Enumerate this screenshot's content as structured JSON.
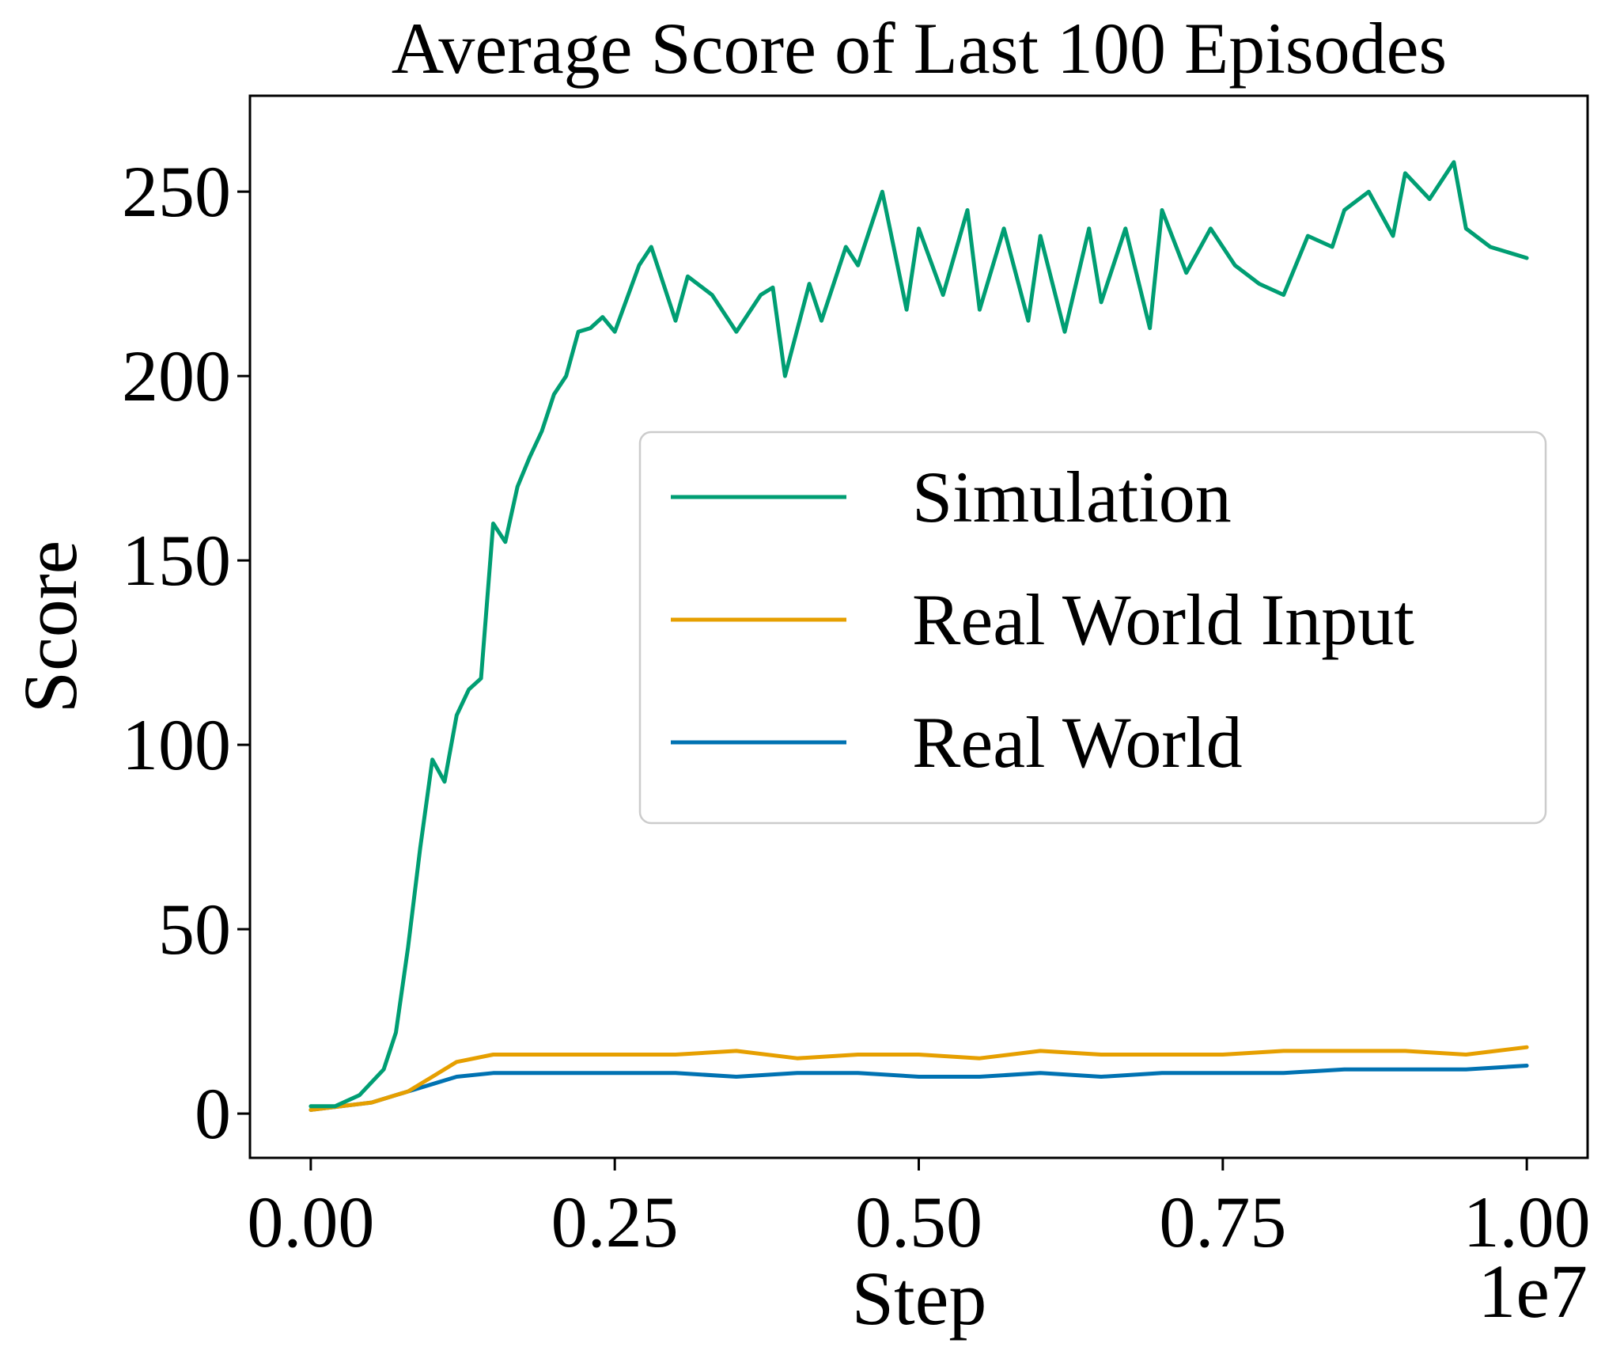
{
  "chart_data": {
    "type": "line",
    "title": "Average Score of Last 100 Episodes",
    "xlabel": "Step",
    "ylabel": "Score",
    "x_offset_label": "1e7",
    "xlim": [
      -0.05,
      1.05
    ],
    "ylim": [
      -12,
      276
    ],
    "xticks": [
      0.0,
      0.25,
      0.5,
      0.75,
      1.0
    ],
    "xtick_labels": [
      "0.00",
      "0.25",
      "0.50",
      "0.75",
      "1.00"
    ],
    "yticks": [
      0,
      50,
      100,
      150,
      200,
      250
    ],
    "ytick_labels": [
      "0",
      "50",
      "100",
      "150",
      "200",
      "250"
    ],
    "grid": false,
    "legend_position": "center-right",
    "series": [
      {
        "name": "Simulation",
        "color": "#009E73",
        "x": [
          0.0,
          0.02,
          0.04,
          0.06,
          0.07,
          0.08,
          0.09,
          0.1,
          0.11,
          0.12,
          0.13,
          0.14,
          0.15,
          0.16,
          0.17,
          0.18,
          0.19,
          0.2,
          0.21,
          0.22,
          0.23,
          0.24,
          0.25,
          0.27,
          0.28,
          0.3,
          0.31,
          0.33,
          0.35,
          0.37,
          0.38,
          0.39,
          0.41,
          0.42,
          0.44,
          0.45,
          0.47,
          0.49,
          0.5,
          0.52,
          0.54,
          0.55,
          0.57,
          0.59,
          0.6,
          0.62,
          0.64,
          0.65,
          0.67,
          0.69,
          0.7,
          0.72,
          0.74,
          0.76,
          0.78,
          0.8,
          0.82,
          0.84,
          0.85,
          0.87,
          0.89,
          0.9,
          0.92,
          0.94,
          0.95,
          0.97,
          1.0
        ],
        "values": [
          2,
          2,
          5,
          12,
          22,
          45,
          72,
          96,
          90,
          108,
          115,
          118,
          160,
          155,
          170,
          178,
          185,
          195,
          200,
          212,
          213,
          216,
          212,
          230,
          235,
          215,
          227,
          222,
          212,
          222,
          224,
          200,
          225,
          215,
          235,
          230,
          250,
          218,
          240,
          222,
          245,
          218,
          240,
          215,
          238,
          212,
          240,
          220,
          240,
          213,
          245,
          228,
          240,
          230,
          225,
          222,
          238,
          235,
          245,
          250,
          238,
          255,
          248,
          258,
          240,
          235,
          232
        ]
      },
      {
        "name": "Real World Input",
        "color": "#E69F00",
        "x": [
          0.0,
          0.05,
          0.08,
          0.1,
          0.12,
          0.15,
          0.18,
          0.2,
          0.25,
          0.3,
          0.35,
          0.4,
          0.45,
          0.5,
          0.55,
          0.6,
          0.65,
          0.7,
          0.75,
          0.8,
          0.85,
          0.9,
          0.95,
          1.0
        ],
        "values": [
          1,
          3,
          6,
          10,
          14,
          16,
          16,
          16,
          16,
          16,
          17,
          15,
          16,
          16,
          15,
          17,
          16,
          16,
          16,
          17,
          17,
          17,
          16,
          18
        ]
      },
      {
        "name": "Real World",
        "color": "#0072B2",
        "x": [
          0.0,
          0.05,
          0.08,
          0.1,
          0.12,
          0.15,
          0.18,
          0.2,
          0.25,
          0.3,
          0.35,
          0.4,
          0.45,
          0.5,
          0.55,
          0.6,
          0.65,
          0.7,
          0.75,
          0.8,
          0.85,
          0.9,
          0.95,
          1.0
        ],
        "values": [
          1,
          3,
          6,
          8,
          10,
          11,
          11,
          11,
          11,
          11,
          10,
          11,
          11,
          10,
          10,
          11,
          10,
          11,
          11,
          11,
          12,
          12,
          12,
          13
        ]
      }
    ]
  }
}
